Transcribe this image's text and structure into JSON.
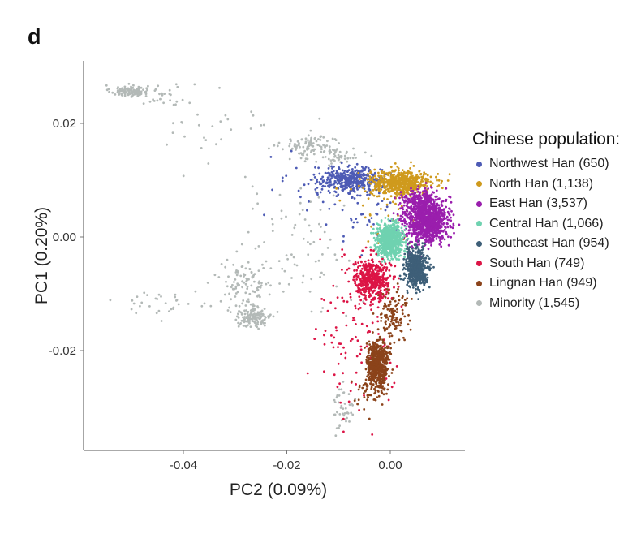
{
  "panel_label": "d",
  "chart_data": {
    "type": "scatter",
    "title": "",
    "xlabel": "PC2 (0.09%)",
    "ylabel": "PC1 (0.20%)",
    "xlim": [
      -0.0575,
      0.0145
    ],
    "ylim": [
      -0.0375,
      0.031
    ],
    "x_ticks": [
      -0.04,
      -0.02,
      0.0
    ],
    "x_tick_labels": [
      "-0.04",
      "-0.02",
      "0.00"
    ],
    "y_ticks": [
      0.02,
      0.0,
      -0.02
    ],
    "y_tick_labels": [
      "0.02",
      "0.00",
      "-0.02"
    ],
    "grid": false,
    "legend": {
      "title": "Chinese population:",
      "placement": "right",
      "entries": [
        {
          "label": "Northwest Han (650)",
          "color": "#4d5bb5"
        },
        {
          "label": "North Han (1,138)",
          "color": "#cf9a1d"
        },
        {
          "label": "East Han (3,537)",
          "color": "#9a1ead"
        },
        {
          "label": "Central Han (1,066)",
          "color": "#6fd2b0"
        },
        {
          "label": "Southeast Han (954)",
          "color": "#3e5f78"
        },
        {
          "label": "South Han (749)",
          "color": "#dc1445"
        },
        {
          "label": "Lingnan Han (949)",
          "color": "#8b431a"
        },
        {
          "label": "Minority (1,545)",
          "color": "#b3b9b7"
        }
      ]
    },
    "series": [
      {
        "name": "Minority (1,545)",
        "color": "#b3b9b7",
        "clusters": [
          {
            "cx": -0.0505,
            "cy": 0.0257,
            "sx": 0.0018,
            "sy": 0.0005,
            "n": 110
          },
          {
            "cx": -0.044,
            "cy": 0.025,
            "sx": 0.003,
            "sy": 0.0012,
            "n": 30
          },
          {
            "cx": -0.033,
            "cy": 0.0185,
            "sx": 0.006,
            "sy": 0.003,
            "n": 28
          },
          {
            "cx": -0.015,
            "cy": 0.016,
            "sx": 0.003,
            "sy": 0.001,
            "n": 110
          },
          {
            "cx": -0.01,
            "cy": 0.014,
            "sx": 0.0025,
            "sy": 0.0008,
            "n": 40
          },
          {
            "cx": -0.0265,
            "cy": -0.014,
            "sx": 0.0018,
            "sy": 0.001,
            "n": 150
          },
          {
            "cx": -0.028,
            "cy": -0.008,
            "sx": 0.0025,
            "sy": 0.0018,
            "n": 90
          },
          {
            "cx": -0.043,
            "cy": -0.0115,
            "sx": 0.006,
            "sy": 0.001,
            "n": 35
          },
          {
            "cx": -0.018,
            "cy": -0.002,
            "sx": 0.006,
            "sy": 0.006,
            "n": 90
          },
          {
            "cx": -0.009,
            "cy": -0.03,
            "sx": 0.001,
            "sy": 0.002,
            "n": 45
          }
        ]
      },
      {
        "name": "Northwest Han (650)",
        "color": "#4d5bb5",
        "clusters": [
          {
            "cx": -0.0075,
            "cy": 0.01,
            "sx": 0.003,
            "sy": 0.001,
            "n": 380
          },
          {
            "cx": -0.012,
            "cy": 0.009,
            "sx": 0.005,
            "sy": 0.003,
            "n": 60
          },
          {
            "cx": -0.003,
            "cy": 0.004,
            "sx": 0.003,
            "sy": 0.003,
            "n": 40
          }
        ]
      },
      {
        "name": "North Han (1,138)",
        "color": "#cf9a1d",
        "clusters": [
          {
            "cx": 0.002,
            "cy": 0.0095,
            "sx": 0.003,
            "sy": 0.0011,
            "n": 600
          },
          {
            "cx": 0.0,
            "cy": 0.003,
            "sx": 0.003,
            "sy": 0.004,
            "n": 40
          }
        ]
      },
      {
        "name": "East Han (3,537)",
        "color": "#9a1ead",
        "clusters": [
          {
            "cx": 0.007,
            "cy": 0.003,
            "sx": 0.002,
            "sy": 0.002,
            "n": 1100
          },
          {
            "cx": 0.005,
            "cy": 0.0065,
            "sx": 0.0015,
            "sy": 0.001,
            "n": 150
          }
        ]
      },
      {
        "name": "Central Han (1,066)",
        "color": "#6fd2b0",
        "clusters": [
          {
            "cx": 0.0,
            "cy": -0.0005,
            "sx": 0.0013,
            "sy": 0.0014,
            "n": 650
          }
        ]
      },
      {
        "name": "Southeast Han (954)",
        "color": "#3e5f78",
        "clusters": [
          {
            "cx": 0.005,
            "cy": -0.0055,
            "sx": 0.0011,
            "sy": 0.0016,
            "n": 550
          }
        ]
      },
      {
        "name": "South Han (749)",
        "color": "#dc1445",
        "clusters": [
          {
            "cx": -0.0035,
            "cy": -0.0075,
            "sx": 0.0018,
            "sy": 0.0018,
            "n": 450
          },
          {
            "cx": -0.006,
            "cy": -0.018,
            "sx": 0.004,
            "sy": 0.007,
            "n": 110
          }
        ]
      },
      {
        "name": "Lingnan Han (949)",
        "color": "#8b431a",
        "clusters": [
          {
            "cx": -0.0025,
            "cy": -0.0225,
            "sx": 0.001,
            "sy": 0.0021,
            "n": 600
          },
          {
            "cx": 0.0005,
            "cy": -0.014,
            "sx": 0.0015,
            "sy": 0.0025,
            "n": 120
          },
          {
            "cx": -0.005,
            "cy": -0.028,
            "sx": 0.0015,
            "sy": 0.0015,
            "n": 30
          }
        ]
      }
    ]
  }
}
